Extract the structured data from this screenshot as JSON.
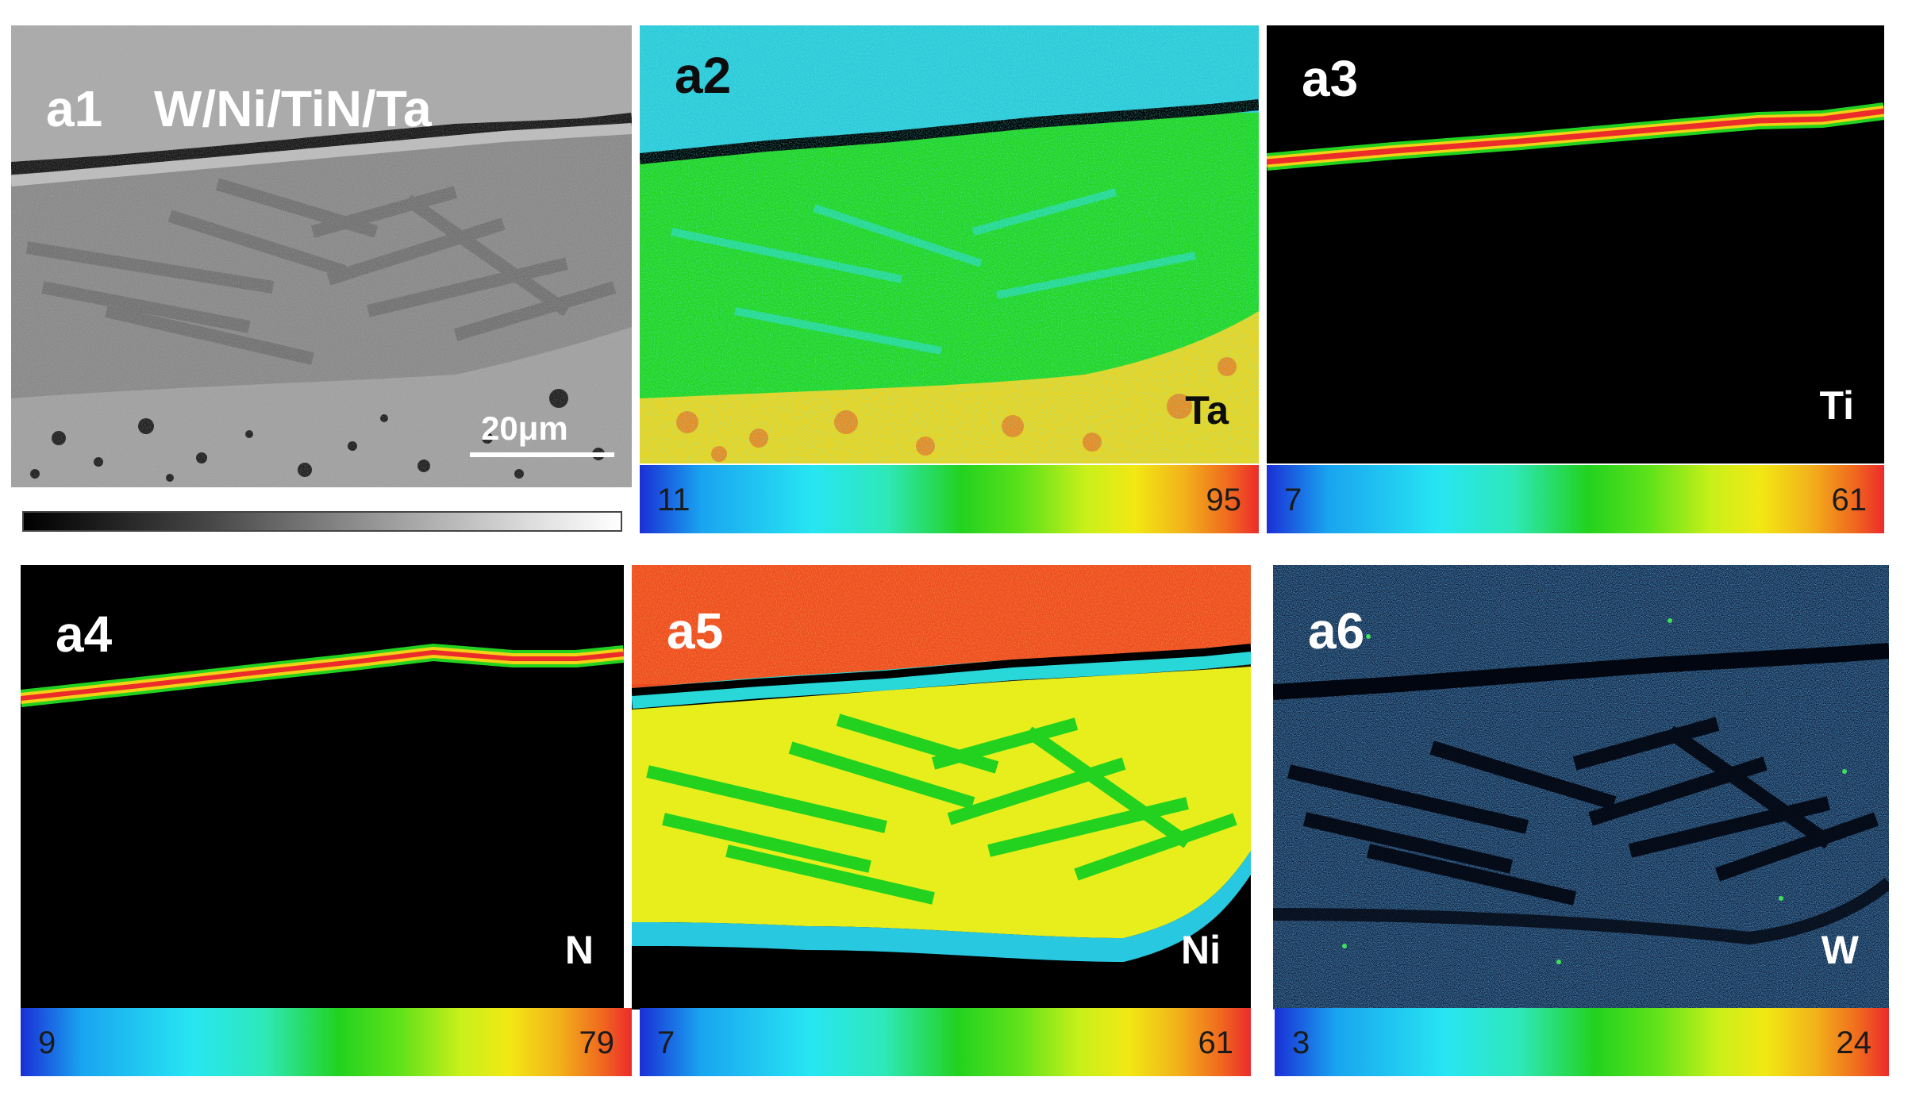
{
  "panels": [
    {
      "id": "a1",
      "label": "a1",
      "title": "W/Ni/TiN/Ta",
      "scale_bar": "20μm"
    },
    {
      "id": "a2",
      "label": "a2",
      "element": "Ta",
      "colorbar": {
        "min": "11",
        "max": "95"
      }
    },
    {
      "id": "a3",
      "label": "a3",
      "element": "Ti",
      "colorbar": {
        "min": "7",
        "max": "61"
      }
    },
    {
      "id": "a4",
      "label": "a4",
      "element": "N",
      "colorbar": {
        "min": "9",
        "max": "79"
      }
    },
    {
      "id": "a5",
      "label": "a5",
      "element": "Ni",
      "colorbar": {
        "min": "7",
        "max": "61"
      }
    },
    {
      "id": "a6",
      "label": "a6",
      "element": "W",
      "colorbar": {
        "min": "3",
        "max": "24"
      }
    }
  ],
  "colors": {
    "background": "#ffffff",
    "map_black": "#000000",
    "high": "#ec2b2b",
    "mid": "#22d21f",
    "low": "#1a2fd6"
  }
}
